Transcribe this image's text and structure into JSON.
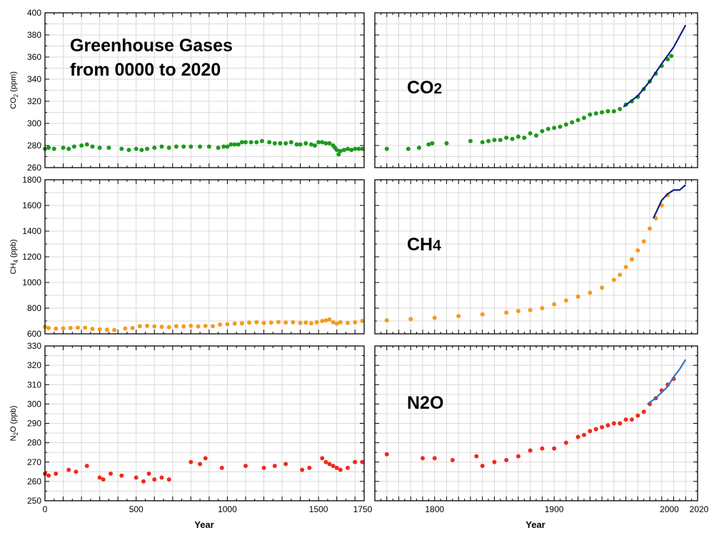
{
  "title_line1": "Greenhouse Gases",
  "title_line2": "from 0000 to 2020",
  "x_axis_title": "Year",
  "chart_data": [
    {
      "type": "scatter",
      "gas_label": "CO2",
      "ylabel": "CO2 (ppm)",
      "ylim": [
        260,
        400
      ],
      "yticks": [
        260,
        280,
        300,
        320,
        340,
        360,
        380,
        400
      ],
      "left_xlim": [
        0,
        1750
      ],
      "right_xlim": [
        1750,
        2020
      ],
      "left_xticks": [
        0,
        500,
        1000,
        1500,
        1750
      ],
      "right_xticks": [
        1800,
        1900,
        2000,
        2020
      ],
      "grid": true,
      "point_color": "#1c9a1c",
      "line_color": "#0a1f8f",
      "points": [
        [
          0,
          277
        ],
        [
          20,
          278
        ],
        [
          50,
          277
        ],
        [
          100,
          278
        ],
        [
          130,
          277
        ],
        [
          160,
          279
        ],
        [
          200,
          280
        ],
        [
          230,
          281
        ],
        [
          260,
          279
        ],
        [
          300,
          278
        ],
        [
          350,
          278
        ],
        [
          420,
          277
        ],
        [
          460,
          276
        ],
        [
          500,
          277
        ],
        [
          530,
          276
        ],
        [
          560,
          277
        ],
        [
          600,
          278
        ],
        [
          640,
          279
        ],
        [
          680,
          278
        ],
        [
          720,
          279
        ],
        [
          760,
          279
        ],
        [
          800,
          279
        ],
        [
          850,
          279
        ],
        [
          900,
          279
        ],
        [
          950,
          278
        ],
        [
          980,
          279
        ],
        [
          1000,
          279
        ],
        [
          1020,
          281
        ],
        [
          1040,
          281
        ],
        [
          1060,
          281
        ],
        [
          1080,
          283
        ],
        [
          1100,
          283
        ],
        [
          1130,
          283
        ],
        [
          1160,
          283
        ],
        [
          1190,
          284
        ],
        [
          1230,
          283
        ],
        [
          1260,
          282
        ],
        [
          1290,
          282
        ],
        [
          1320,
          282
        ],
        [
          1350,
          283
        ],
        [
          1380,
          281
        ],
        [
          1400,
          281
        ],
        [
          1430,
          282
        ],
        [
          1460,
          281
        ],
        [
          1480,
          280
        ],
        [
          1500,
          283
        ],
        [
          1520,
          283
        ],
        [
          1540,
          282
        ],
        [
          1560,
          282
        ],
        [
          1580,
          280
        ],
        [
          1590,
          278
        ],
        [
          1600,
          276
        ],
        [
          1610,
          272
        ],
        [
          1620,
          275
        ],
        [
          1640,
          276
        ],
        [
          1660,
          277
        ],
        [
          1680,
          276
        ],
        [
          1700,
          277
        ],
        [
          1720,
          277
        ],
        [
          1740,
          277
        ],
        [
          1760,
          277
        ],
        [
          1778,
          277
        ],
        [
          1787,
          278
        ],
        [
          1795,
          281
        ],
        [
          1798,
          282
        ],
        [
          1810,
          282
        ],
        [
          1830,
          284
        ],
        [
          1840,
          283
        ],
        [
          1845,
          284
        ],
        [
          1850,
          285
        ],
        [
          1855,
          285
        ],
        [
          1860,
          287
        ],
        [
          1865,
          286
        ],
        [
          1870,
          288
        ],
        [
          1875,
          287
        ],
        [
          1880,
          291
        ],
        [
          1885,
          289
        ],
        [
          1890,
          293
        ],
        [
          1895,
          295
        ],
        [
          1900,
          296
        ],
        [
          1905,
          297
        ],
        [
          1910,
          299
        ],
        [
          1915,
          301
        ],
        [
          1920,
          303
        ],
        [
          1925,
          305
        ],
        [
          1930,
          308
        ],
        [
          1935,
          309
        ],
        [
          1940,
          310
        ],
        [
          1945,
          311
        ],
        [
          1950,
          311
        ],
        [
          1955,
          313
        ],
        [
          1960,
          317
        ],
        [
          1965,
          320
        ],
        [
          1970,
          324
        ],
        [
          1975,
          331
        ],
        [
          1980,
          338
        ],
        [
          1985,
          345
        ],
        [
          1990,
          352
        ],
        [
          1995,
          358
        ],
        [
          1998,
          361
        ]
      ],
      "line": [
        [
          1958,
          315
        ],
        [
          1970,
          325
        ],
        [
          1980,
          338
        ],
        [
          1990,
          354
        ],
        [
          2000,
          369
        ],
        [
          2010,
          389
        ]
      ]
    },
    {
      "type": "scatter",
      "gas_label": "CH4",
      "ylabel": "CH4 (ppb)",
      "ylim": [
        600,
        1800
      ],
      "yticks": [
        600,
        800,
        1000,
        1200,
        1400,
        1600,
        1800
      ],
      "left_xlim": [
        0,
        1750
      ],
      "right_xlim": [
        1750,
        2020
      ],
      "left_xticks": [
        0,
        500,
        1000,
        1500,
        1750
      ],
      "right_xticks": [
        1800,
        1900,
        2000,
        2020
      ],
      "grid": true,
      "point_color": "#f59b1c",
      "line_color": "#0a1f8f",
      "points": [
        [
          0,
          655
        ],
        [
          20,
          645
        ],
        [
          60,
          640
        ],
        [
          100,
          643
        ],
        [
          140,
          645
        ],
        [
          180,
          648
        ],
        [
          220,
          648
        ],
        [
          260,
          638
        ],
        [
          300,
          635
        ],
        [
          340,
          632
        ],
        [
          380,
          630
        ],
        [
          440,
          642
        ],
        [
          480,
          645
        ],
        [
          520,
          660
        ],
        [
          560,
          662
        ],
        [
          600,
          658
        ],
        [
          640,
          655
        ],
        [
          680,
          652
        ],
        [
          720,
          660
        ],
        [
          760,
          658
        ],
        [
          800,
          662
        ],
        [
          840,
          658
        ],
        [
          880,
          662
        ],
        [
          920,
          660
        ],
        [
          960,
          672
        ],
        [
          1000,
          675
        ],
        [
          1040,
          680
        ],
        [
          1080,
          682
        ],
        [
          1120,
          688
        ],
        [
          1160,
          690
        ],
        [
          1200,
          684
        ],
        [
          1240,
          688
        ],
        [
          1280,
          692
        ],
        [
          1320,
          688
        ],
        [
          1360,
          690
        ],
        [
          1400,
          685
        ],
        [
          1430,
          688
        ],
        [
          1460,
          682
        ],
        [
          1490,
          690
        ],
        [
          1520,
          700
        ],
        [
          1540,
          705
        ],
        [
          1560,
          712
        ],
        [
          1580,
          690
        ],
        [
          1600,
          680
        ],
        [
          1620,
          690
        ],
        [
          1660,
          685
        ],
        [
          1700,
          690
        ],
        [
          1740,
          700
        ],
        [
          1760,
          705
        ],
        [
          1780,
          715
        ],
        [
          1800,
          725
        ],
        [
          1820,
          738
        ],
        [
          1840,
          752
        ],
        [
          1860,
          765
        ],
        [
          1870,
          778
        ],
        [
          1880,
          785
        ],
        [
          1890,
          800
        ],
        [
          1900,
          830
        ],
        [
          1910,
          860
        ],
        [
          1920,
          890
        ],
        [
          1930,
          920
        ],
        [
          1940,
          960
        ],
        [
          1950,
          1020
        ],
        [
          1955,
          1060
        ],
        [
          1960,
          1120
        ],
        [
          1965,
          1180
        ],
        [
          1970,
          1250
        ],
        [
          1975,
          1320
        ],
        [
          1980,
          1420
        ],
        [
          1985,
          1500
        ],
        [
          1990,
          1600
        ],
        [
          1995,
          1680
        ]
      ],
      "line": [
        [
          1983,
          1500
        ],
        [
          1990,
          1640
        ],
        [
          1995,
          1690
        ],
        [
          2000,
          1720
        ],
        [
          2005,
          1720
        ],
        [
          2010,
          1760
        ]
      ]
    },
    {
      "type": "scatter",
      "gas_label": "N2O",
      "ylabel": "N2O (ppb)",
      "ylim": [
        250,
        330
      ],
      "yticks": [
        250,
        260,
        270,
        280,
        290,
        300,
        310,
        320,
        330
      ],
      "left_xlim": [
        0,
        1750
      ],
      "right_xlim": [
        1750,
        2020
      ],
      "left_xticks": [
        0,
        500,
        1000,
        1500,
        1750
      ],
      "right_xticks": [
        1800,
        1900,
        2000,
        2020
      ],
      "grid": true,
      "point_color": "#f02a1c",
      "line_color": "#2f75c7",
      "points": [
        [
          0,
          264
        ],
        [
          20,
          263
        ],
        [
          60,
          264
        ],
        [
          130,
          266
        ],
        [
          170,
          265
        ],
        [
          230,
          268
        ],
        [
          300,
          262
        ],
        [
          320,
          261
        ],
        [
          360,
          264
        ],
        [
          420,
          263
        ],
        [
          500,
          262
        ],
        [
          540,
          260
        ],
        [
          570,
          264
        ],
        [
          600,
          261
        ],
        [
          640,
          262
        ],
        [
          680,
          261
        ],
        [
          800,
          270
        ],
        [
          850,
          269
        ],
        [
          880,
          272
        ],
        [
          970,
          267
        ],
        [
          1100,
          268
        ],
        [
          1200,
          267
        ],
        [
          1260,
          268
        ],
        [
          1320,
          269
        ],
        [
          1410,
          266
        ],
        [
          1450,
          267
        ],
        [
          1520,
          272
        ],
        [
          1540,
          270
        ],
        [
          1560,
          269
        ],
        [
          1580,
          268
        ],
        [
          1600,
          267
        ],
        [
          1620,
          266
        ],
        [
          1660,
          267
        ],
        [
          1700,
          270
        ],
        [
          1740,
          270
        ],
        [
          1760,
          274
        ],
        [
          1790,
          272
        ],
        [
          1800,
          272
        ],
        [
          1815,
          271
        ],
        [
          1835,
          273
        ],
        [
          1840,
          268
        ],
        [
          1850,
          270
        ],
        [
          1860,
          271
        ],
        [
          1870,
          273
        ],
        [
          1880,
          276
        ],
        [
          1890,
          277
        ],
        [
          1900,
          277
        ],
        [
          1910,
          280
        ],
        [
          1920,
          283
        ],
        [
          1925,
          284
        ],
        [
          1930,
          286
        ],
        [
          1935,
          287
        ],
        [
          1940,
          288
        ],
        [
          1945,
          289
        ],
        [
          1950,
          290
        ],
        [
          1955,
          290
        ],
        [
          1960,
          292
        ],
        [
          1965,
          292
        ],
        [
          1970,
          294
        ],
        [
          1975,
          296
        ],
        [
          1980,
          300
        ],
        [
          1985,
          303
        ],
        [
          1990,
          307
        ],
        [
          1995,
          310
        ],
        [
          2000,
          313
        ]
      ],
      "line": [
        [
          1978,
          300
        ],
        [
          1985,
          303
        ],
        [
          1990,
          306
        ],
        [
          1995,
          309
        ],
        [
          2000,
          314
        ],
        [
          2005,
          318
        ],
        [
          2010,
          323
        ]
      ]
    }
  ]
}
